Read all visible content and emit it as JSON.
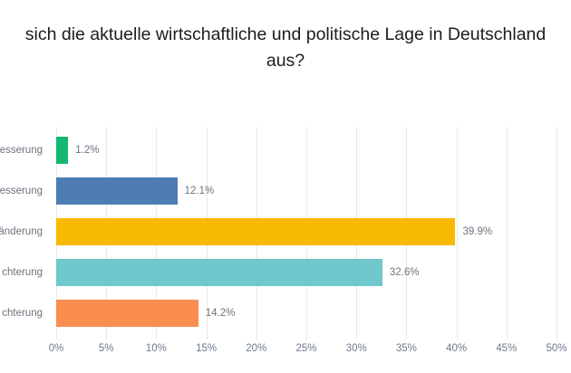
{
  "title": {
    "line1": "sich die aktuelle wirtschaftliche und politische Lage in Deutschland",
    "line2": "aus?"
  },
  "chart_data": {
    "type": "bar",
    "orientation": "horizontal",
    "categories": [
      "esserung",
      "esserung",
      "änderung",
      "chterung",
      "chterung"
    ],
    "values": [
      1.2,
      12.1,
      39.9,
      32.6,
      14.2
    ],
    "value_labels": [
      "1.2%",
      "12.1%",
      "39.9%",
      "32.6%",
      "14.2%"
    ],
    "bar_colors": [
      "#14b870",
      "#4e7cb5",
      "#f8ba00",
      "#6fc8cb",
      "#f98e4e"
    ],
    "x_ticks": [
      "0%",
      "5%",
      "10%",
      "15%",
      "20%",
      "25%",
      "30%",
      "35%",
      "40%",
      "45%",
      "50%"
    ],
    "xlim": [
      0,
      50
    ],
    "grid": true,
    "legend": "none",
    "title": "sich die aktuelle wirtschaftliche und politische Lage in Deutschland aus?"
  },
  "colors": {
    "background": "#ffffff",
    "gridline": "#e8e8e8",
    "title_text": "#1c1c1c",
    "label_text": "#6a737e",
    "tick_text": "#6e7b8a"
  }
}
